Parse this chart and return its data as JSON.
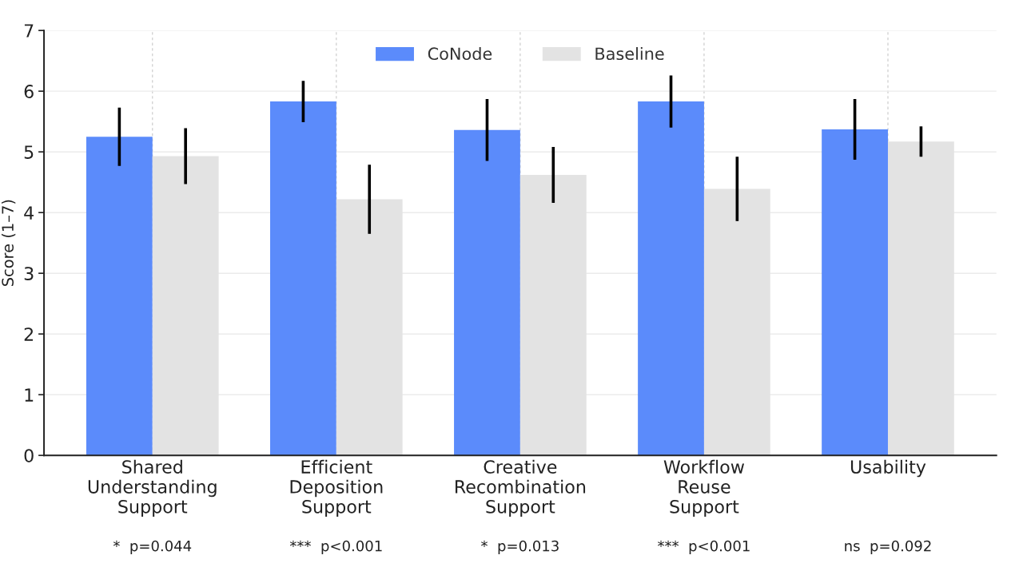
{
  "chart_data": {
    "type": "bar",
    "ylabel": "Score (1–7)",
    "categories": [
      "Shared\nUnderstanding\nSupport",
      "Efficient\nDeposition\nSupport",
      "Creative\nRecombination\nSupport",
      "Workflow\nReuse\nSupport",
      "Usability"
    ],
    "series": [
      {
        "name": "CoNode",
        "color": "#5b8bfb",
        "values": [
          5.25,
          5.83,
          5.36,
          5.83,
          5.37
        ],
        "errors": [
          0.48,
          0.34,
          0.51,
          0.43,
          0.5
        ]
      },
      {
        "name": "Baseline",
        "color": "#e3e3e3",
        "values": [
          4.93,
          4.22,
          4.62,
          4.39,
          5.17
        ],
        "errors": [
          0.46,
          0.57,
          0.46,
          0.53,
          0.25
        ]
      }
    ],
    "ylim": [
      0,
      7
    ],
    "yticks": [
      0,
      1,
      2,
      3,
      4,
      5,
      6,
      7
    ],
    "grid": true,
    "legend": "top",
    "annotations": [
      "*  p=0.044",
      "***  p<0.001",
      "*  p=0.013",
      "***  p<0.001",
      "ns  p=0.092"
    ]
  }
}
